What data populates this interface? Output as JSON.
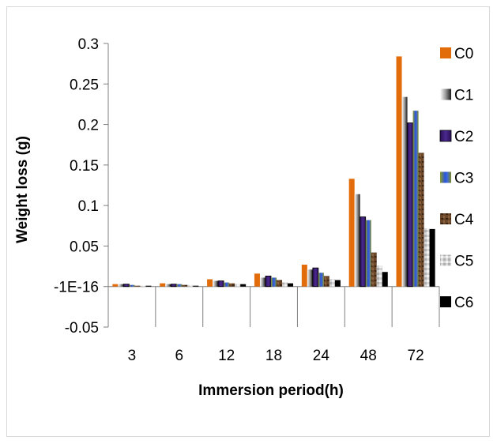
{
  "chart_data": {
    "type": "bar",
    "categories": [
      "3",
      "6",
      "12",
      "18",
      "24",
      "48",
      "72"
    ],
    "xlabel": "Immersion period(h)",
    "ylabel": "Weight loss (g)",
    "ylim": [
      -0.05,
      0.3
    ],
    "yticks": [
      -0.05,
      0,
      0.05,
      0.1,
      0.15,
      0.2,
      0.25,
      0.3
    ],
    "ytick_labels": [
      "-0.05",
      "-1E-16",
      "0.05",
      "0.1",
      "0.15",
      "0.2",
      "0.25",
      "0.3"
    ],
    "grid": false,
    "legend_position": "right",
    "series": [
      {
        "name": "C0",
        "color": "#e36c0a",
        "values": [
          0.003,
          0.004,
          0.009,
          0.016,
          0.027,
          0.133,
          0.284
        ]
      },
      {
        "name": "C1",
        "color": "#8c8c8c",
        "values": [
          0.003,
          0.003,
          0.007,
          0.011,
          0.021,
          0.114,
          0.234
        ]
      },
      {
        "name": "C2",
        "color": "#3f1f6f",
        "values": [
          0.003,
          0.003,
          0.007,
          0.013,
          0.023,
          0.086,
          0.202
        ]
      },
      {
        "name": "C3",
        "color": "#76812b",
        "values": [
          0.002,
          0.003,
          0.005,
          0.011,
          0.017,
          0.082,
          0.217
        ]
      },
      {
        "name": "C4",
        "color": "#5c3a21",
        "values": [
          0.001,
          0.002,
          0.004,
          0.008,
          0.013,
          0.042,
          0.165
        ]
      },
      {
        "name": "C5",
        "color": "#c8c8c8",
        "values": [
          0.001,
          0.002,
          0.003,
          0.005,
          0.009,
          0.026,
          0.072
        ]
      },
      {
        "name": "C6",
        "color": "#000000",
        "values": [
          0.001,
          0.001,
          0.003,
          0.004,
          0.008,
          0.018,
          0.071
        ]
      }
    ]
  }
}
